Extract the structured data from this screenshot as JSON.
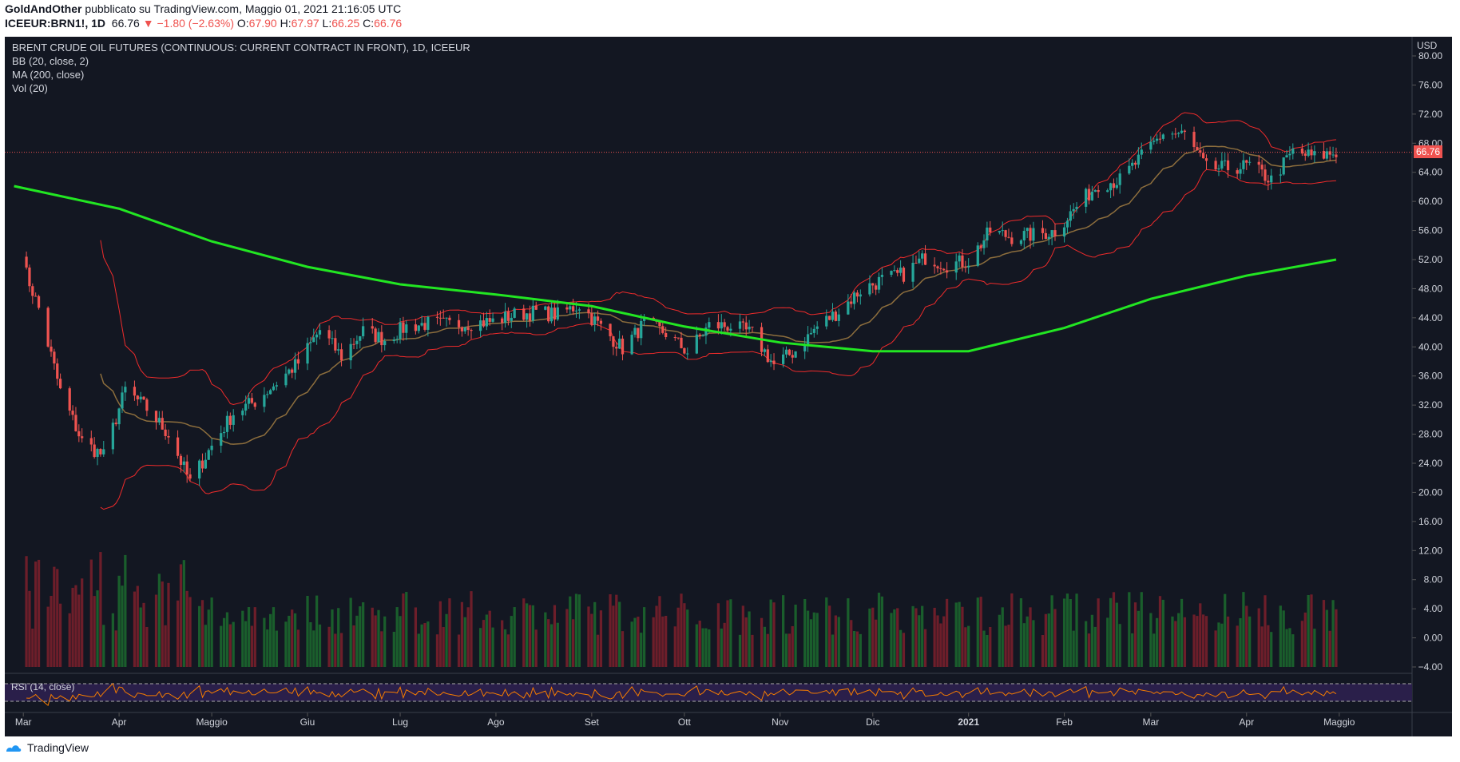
{
  "header": {
    "author": "GoldAndOther",
    "published": "pubblicato su TradingView.com, Maggio 01, 2021 21:16:05 UTC",
    "symbol": "ICEEUR:BRN1!, 1D",
    "last": "66.76",
    "change": "−1.80 (−2.63%)",
    "open_label": "O:",
    "open": "67.90",
    "high_label": "H:",
    "high": "67.97",
    "low_label": "L:",
    "low": "66.25",
    "close_label": "C:",
    "close": "66.76"
  },
  "legend": {
    "title": "BRENT CRUDE OIL FUTURES (CONTINUOUS: CURRENT CONTRACT IN FRONT), 1D, ICEEUR",
    "bb": "BB (20, close, 2)",
    "ma": "MA (200, close)",
    "vol": "Vol (20)",
    "rsi": "RSI (14, close)"
  },
  "currency": "USD",
  "last_price_tag": "66.76",
  "footer": {
    "brand": "TradingView"
  },
  "colors": {
    "background": "#131722",
    "up": "#26a69a",
    "down": "#ef5350",
    "bb_band": "#ef2b2b",
    "bb_basis": "#8d6e3d",
    "ma200": "#22e622",
    "vol_up": "#1a5e2c",
    "vol_down": "#6d1e2a",
    "rsi_line": "#f57c00",
    "rsi_fill": "#2a1f4a"
  },
  "chart_data": {
    "type": "candlestick",
    "title": "BRENT CRUDE OIL FUTURES (CONTINUOUS: CURRENT CONTRACT IN FRONT), 1D, ICEEUR",
    "x_tick_labels": [
      "Mar",
      "Apr",
      "Maggio",
      "Giu",
      "Lug",
      "Ago",
      "Set",
      "Ott",
      "Nov",
      "Dic",
      "2021",
      "Feb",
      "Mar",
      "Apr",
      "Maggio"
    ],
    "y_tick_labels": [
      "80.00",
      "76.00",
      "72.00",
      "68.00",
      "64.00",
      "60.00",
      "56.00",
      "52.00",
      "48.00",
      "44.00",
      "40.00",
      "36.00",
      "32.00",
      "28.00",
      "24.00",
      "20.00",
      "16.00",
      "12.00",
      "8.00",
      "4.00",
      "0.00",
      "−4.00"
    ],
    "ylim": [
      -4,
      80
    ],
    "last_price": 66.76,
    "price_path": [
      {
        "date": "2020-02-28",
        "close": 53.5
      },
      {
        "date": "2020-03-06",
        "close": 45.3
      },
      {
        "date": "2020-03-13",
        "close": 33.9
      },
      {
        "date": "2020-03-20",
        "close": 27.0
      },
      {
        "date": "2020-03-27",
        "close": 25.0
      },
      {
        "date": "2020-04-03",
        "close": 34.1
      },
      {
        "date": "2020-04-10",
        "close": 31.5
      },
      {
        "date": "2020-04-17",
        "close": 28.0
      },
      {
        "date": "2020-04-24",
        "close": 21.4
      },
      {
        "date": "2020-05-01",
        "close": 26.4
      },
      {
        "date": "2020-05-08",
        "close": 30.9
      },
      {
        "date": "2020-05-15",
        "close": 32.5
      },
      {
        "date": "2020-05-22",
        "close": 35.1
      },
      {
        "date": "2020-05-29",
        "close": 37.8
      },
      {
        "date": "2020-06-05",
        "close": 42.3
      },
      {
        "date": "2020-06-12",
        "close": 38.7
      },
      {
        "date": "2020-06-19",
        "close": 42.2
      },
      {
        "date": "2020-06-26",
        "close": 41.0
      },
      {
        "date": "2020-07-03",
        "close": 42.8
      },
      {
        "date": "2020-07-10",
        "close": 43.2
      },
      {
        "date": "2020-07-17",
        "close": 43.1
      },
      {
        "date": "2020-07-24",
        "close": 43.3
      },
      {
        "date": "2020-07-31",
        "close": 43.5
      },
      {
        "date": "2020-08-07",
        "close": 44.4
      },
      {
        "date": "2020-08-14",
        "close": 44.8
      },
      {
        "date": "2020-08-21",
        "close": 44.4
      },
      {
        "date": "2020-08-28",
        "close": 45.8
      },
      {
        "date": "2020-09-04",
        "close": 42.7
      },
      {
        "date": "2020-09-11",
        "close": 39.8
      },
      {
        "date": "2020-09-18",
        "close": 43.2
      },
      {
        "date": "2020-09-25",
        "close": 41.9
      },
      {
        "date": "2020-10-02",
        "close": 39.3
      },
      {
        "date": "2020-10-09",
        "close": 42.9
      },
      {
        "date": "2020-10-16",
        "close": 42.9
      },
      {
        "date": "2020-10-23",
        "close": 41.8
      },
      {
        "date": "2020-10-30",
        "close": 37.5
      },
      {
        "date": "2020-11-06",
        "close": 39.5
      },
      {
        "date": "2020-11-13",
        "close": 42.8
      },
      {
        "date": "2020-11-20",
        "close": 44.9
      },
      {
        "date": "2020-11-27",
        "close": 47.8
      },
      {
        "date": "2020-12-04",
        "close": 49.2
      },
      {
        "date": "2020-12-11",
        "close": 50.0
      },
      {
        "date": "2020-12-18",
        "close": 52.3
      },
      {
        "date": "2020-12-25",
        "close": 51.3
      },
      {
        "date": "2021-01-01",
        "close": 51.8
      },
      {
        "date": "2021-01-08",
        "close": 55.9
      },
      {
        "date": "2021-01-15",
        "close": 55.1
      },
      {
        "date": "2021-01-22",
        "close": 55.4
      },
      {
        "date": "2021-01-29",
        "close": 55.9
      },
      {
        "date": "2021-02-05",
        "close": 59.3
      },
      {
        "date": "2021-02-12",
        "close": 62.4
      },
      {
        "date": "2021-02-19",
        "close": 62.9
      },
      {
        "date": "2021-02-26",
        "close": 66.1
      },
      {
        "date": "2021-03-05",
        "close": 69.4
      },
      {
        "date": "2021-03-12",
        "close": 69.2
      },
      {
        "date": "2021-03-19",
        "close": 64.5
      },
      {
        "date": "2021-03-26",
        "close": 64.6
      },
      {
        "date": "2021-04-02",
        "close": 64.9
      },
      {
        "date": "2021-04-09",
        "close": 62.9
      },
      {
        "date": "2021-04-16",
        "close": 66.8
      },
      {
        "date": "2021-04-23",
        "close": 66.1
      },
      {
        "date": "2021-04-30",
        "close": 66.76
      }
    ],
    "series": [
      {
        "name": "MA (200, close)",
        "values": [
          {
            "date": "2020-02-27",
            "y": 62.1
          },
          {
            "date": "2020-04-01",
            "y": 59.0
          },
          {
            "date": "2020-05-01",
            "y": 54.5
          },
          {
            "date": "2020-06-01",
            "y": 51.0
          },
          {
            "date": "2020-07-01",
            "y": 48.6
          },
          {
            "date": "2020-08-01",
            "y": 47.2
          },
          {
            "date": "2020-09-01",
            "y": 45.6
          },
          {
            "date": "2020-10-01",
            "y": 42.8
          },
          {
            "date": "2020-11-01",
            "y": 40.6
          },
          {
            "date": "2020-12-01",
            "y": 39.4
          },
          {
            "date": "2021-01-01",
            "y": 39.4
          },
          {
            "date": "2021-02-01",
            "y": 42.6
          },
          {
            "date": "2021-03-01",
            "y": 46.6
          },
          {
            "date": "2021-04-01",
            "y": 49.8
          },
          {
            "date": "2021-04-30",
            "y": 52.0
          }
        ]
      },
      {
        "name": "BB (20, close, 2)",
        "values": []
      }
    ]
  }
}
